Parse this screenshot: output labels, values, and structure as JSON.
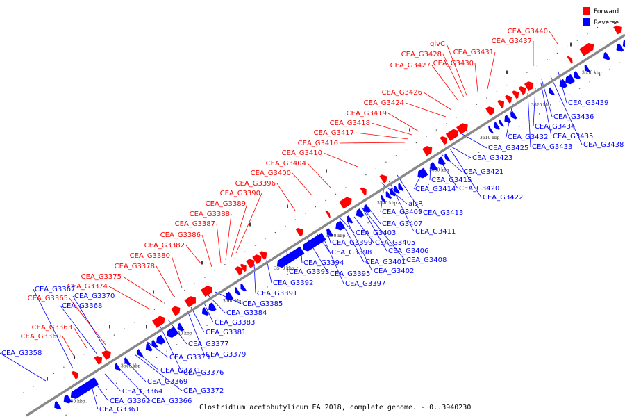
{
  "caption": "Clostridium acetobutylicum EA 2018, complete genome. - 0..3940230",
  "legend": [
    {
      "label": "Forward",
      "color": "#ff0000"
    },
    {
      "label": "Reverse",
      "color": "#0000ff"
    }
  ],
  "colors": {
    "forward": "#ff0000",
    "reverse": "#0000ff",
    "backbone": "#888888"
  },
  "ticks": [
    "3530 kbp",
    "3540 kbp",
    "3550 kbp",
    "3560 kbp",
    "3570 kbp",
    "3580 kbp",
    "3590 kbp",
    "3600 kbp",
    "3610 kbp",
    "3620 kbp",
    "3630 kbp"
  ],
  "forward_genes": [
    "CEA_G3360",
    "CEA_G3363",
    "CEA_G3365",
    "CEA_G3374",
    "CEA_G3375",
    "CEA_G3378",
    "CEA_G3380",
    "CEA_G3382",
    "CEA_G3386",
    "CEA_G3387",
    "CEA_G3388",
    "CEA_G3389",
    "CEA_G3390",
    "CEA_G3396",
    "CEA_G3400",
    "CEA_G3404",
    "CEA_G3410",
    "CEA_G3416",
    "CEA_G3417",
    "CEA_G3418",
    "CEA_G3419",
    "CEA_G3424",
    "CEA_G3426",
    "CEA_G3427",
    "CEA_G3428",
    "glvC",
    "CEA_G3430",
    "CEA_G3431",
    "CEA_G3437",
    "CEA_G3440"
  ],
  "reverse_genes": [
    "CEA_G3358",
    "CEA_G3361",
    "CEA_G3362",
    "CEA_G3364",
    "CEA_G3366",
    "CEA_G3367",
    "CEA_G3368",
    "CEA_G3369",
    "CEA_G3370",
    "CEA_G3371",
    "CEA_G3372",
    "CEA_G3373",
    "CEA_G3376",
    "CEA_G3377",
    "CEA_G3379",
    "CEA_G3381",
    "CEA_G3383",
    "CEA_G3384",
    "CEA_G3385",
    "CEA_G3391",
    "CEA_G3392",
    "CEA_G3393",
    "CEA_G3394",
    "CEA_G3395",
    "CEA_G3397",
    "CEA_G3398",
    "CEA_G3399",
    "CEA_G3401",
    "CEA_G3402",
    "CEA_G3403",
    "CEA_G3405",
    "CEA_G3406",
    "CEA_G3407",
    "CEA_G3408",
    "alsR",
    "CEA_G3409",
    "CEA_G3411",
    "CEA_G3413",
    "CEA_G3414",
    "CEA_G3415",
    "CEA_G3420",
    "CEA_G3421",
    "CEA_G3422",
    "CEA_G3423",
    "CEA_G3425",
    "CEA_G3432",
    "CEA_G3433",
    "CEA_G3434",
    "CEA_G3435",
    "CEA_G3436",
    "CEA_G3438",
    "CEA_G3439"
  ]
}
